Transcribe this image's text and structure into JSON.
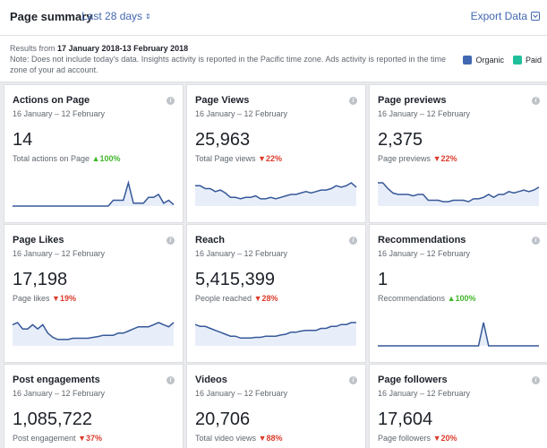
{
  "header": {
    "title": "Page summary",
    "range_label": "Last 28 days",
    "export_label": "Export Data"
  },
  "notes": {
    "results_prefix": "Results from ",
    "results_range": "17 January 2018-13 February 2018",
    "note": "Note: Does not include today's data. Insights activity is reported in the Pacific time zone. Ads activity is reported in the time zone of your ad account."
  },
  "legend": [
    {
      "label": "Organic",
      "color": "#4267b2"
    },
    {
      "label": "Paid",
      "color": "#1fbf9c"
    }
  ],
  "colors": {
    "line": "#365899",
    "fill": "#e8eef9",
    "up": "#42b72a",
    "down": "#dc3b2b"
  },
  "cards": [
    {
      "title": "Actions on Page",
      "dates": "16 January – 12 February",
      "value": "14",
      "stat_label": "Total actions on Page",
      "trend": "up",
      "trend_value": "100%",
      "series": [
        0,
        0,
        0,
        0,
        0,
        0,
        0,
        0,
        0,
        0,
        0,
        0,
        0,
        0,
        0,
        0,
        0,
        0,
        0,
        0,
        2,
        2,
        2,
        8,
        1,
        1,
        1,
        3,
        3,
        4,
        1,
        2,
        0.5
      ]
    },
    {
      "title": "Page Views",
      "dates": "16 January – 12 February",
      "value": "25,963",
      "stat_label": "Total Page views",
      "trend": "down",
      "trend_value": "22%",
      "series": [
        7,
        7,
        6,
        6,
        5,
        5.5,
        4.5,
        3,
        3,
        2.5,
        3,
        3,
        3.5,
        2.5,
        2.5,
        3,
        2.5,
        3,
        3.5,
        4,
        4,
        4.5,
        5,
        4.5,
        5,
        5.5,
        5.5,
        6,
        7,
        6.5,
        7,
        8,
        6.5
      ]
    },
    {
      "title": "Page previews",
      "dates": "16 January – 12 February",
      "value": "2,375",
      "stat_label": "Page previews",
      "trend": "down",
      "trend_value": "22%",
      "series": [
        8,
        8,
        6,
        4.5,
        4,
        4,
        4,
        3.5,
        4,
        4,
        2,
        2,
        2,
        1.5,
        1.5,
        2,
        2,
        2,
        1.5,
        2.5,
        2.5,
        3,
        4,
        3,
        4,
        4,
        5,
        4.5,
        5,
        5.5,
        5,
        5.5,
        6.5
      ]
    },
    {
      "title": "Page Likes",
      "dates": "16 January – 12 February",
      "value": "17,198",
      "stat_label": "Page likes",
      "trend": "down",
      "trend_value": "19%",
      "series": [
        5,
        5.5,
        4,
        4,
        5,
        4,
        5,
        3,
        2,
        1.5,
        1.5,
        1.5,
        1.8,
        1.8,
        1.8,
        1.8,
        2,
        2.2,
        2.5,
        2.5,
        2.5,
        3,
        3,
        3.5,
        4,
        4.5,
        4.5,
        4.5,
        5,
        5.5,
        5,
        4.5,
        5.5
      ]
    },
    {
      "title": "Reach",
      "dates": "16 January – 12 February",
      "value": "5,415,399",
      "stat_label": "People reached",
      "trend": "down",
      "trend_value": "28%",
      "series": [
        5.5,
        5,
        5,
        4.5,
        4,
        3.5,
        3,
        2.5,
        2.5,
        2,
        2,
        2,
        2.2,
        2.2,
        2.5,
        2.5,
        2.5,
        2.8,
        3,
        3.5,
        3.5,
        3.8,
        4,
        4,
        4,
        4.5,
        4.5,
        5,
        5,
        5.5,
        5.5,
        6,
        6
      ]
    },
    {
      "title": "Recommendations",
      "dates": "16 January – 12 February",
      "value": "1",
      "stat_label": "Recommendations",
      "trend": "up",
      "trend_value": "100%",
      "series": [
        0,
        0,
        0,
        0,
        0,
        0,
        0,
        0,
        0,
        0,
        0,
        0,
        0,
        0,
        0,
        0,
        0,
        0,
        0,
        0,
        0,
        10,
        0,
        0,
        0,
        0,
        0,
        0,
        0,
        0,
        0,
        0,
        0
      ]
    },
    {
      "title": "Post engagements",
      "dates": "16 January – 12 February",
      "value": "1,085,722",
      "stat_label": "Post engagement",
      "trend": "down",
      "trend_value": "37%",
      "series": []
    },
    {
      "title": "Videos",
      "dates": "16 January – 12 February",
      "value": "20,706",
      "stat_label": "Total video views",
      "trend": "down",
      "trend_value": "88%",
      "series": []
    },
    {
      "title": "Page followers",
      "dates": "16 January – 12 February",
      "value": "17,604",
      "stat_label": "Page followers",
      "trend": "down",
      "trend_value": "20%",
      "series": []
    }
  ]
}
